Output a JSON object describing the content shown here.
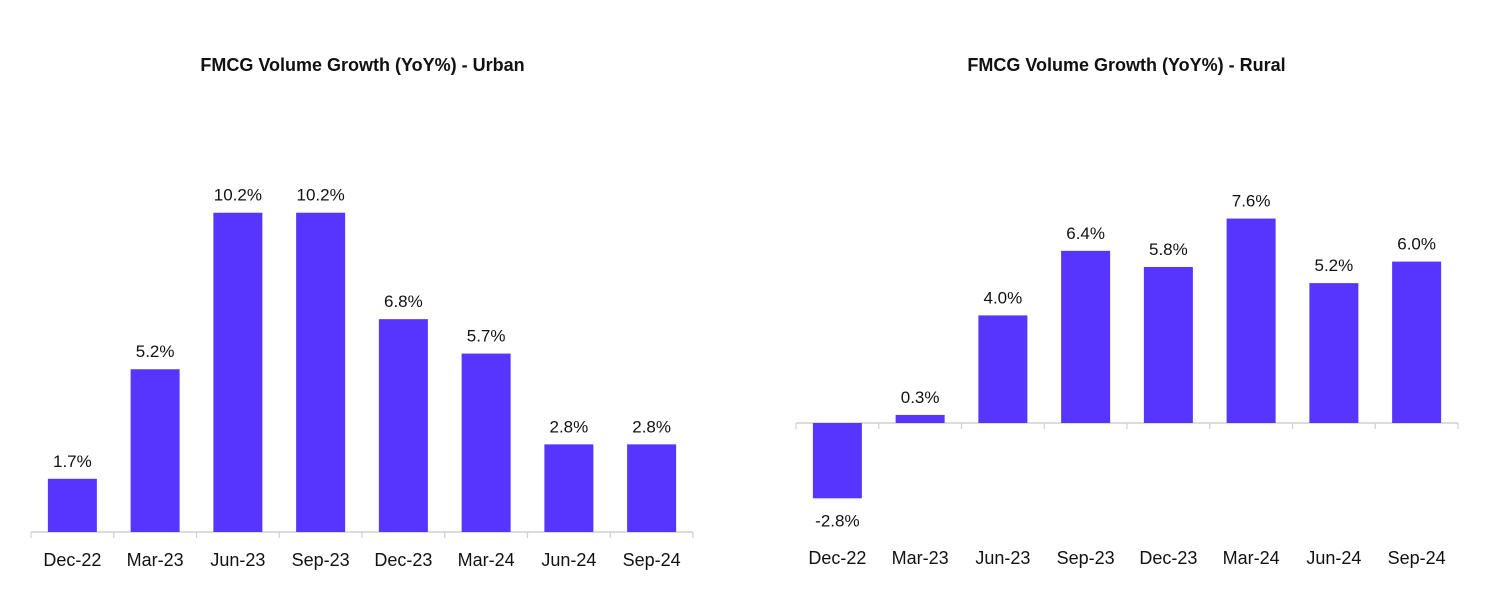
{
  "chart_data": [
    {
      "type": "bar",
      "title": "FMCG Volume Growth (YoY%)  - Urban",
      "categories": [
        "Dec-22",
        "Mar-23",
        "Jun-23",
        "Sep-23",
        "Dec-23",
        "Mar-24",
        "Jun-24",
        "Sep-24"
      ],
      "values": [
        1.7,
        5.2,
        10.2,
        10.2,
        6.8,
        5.7,
        2.8,
        2.8
      ],
      "data_labels": [
        "1.7%",
        "5.2%",
        "10.2%",
        "10.2%",
        "6.8%",
        "5.7%",
        "2.8%",
        "2.8%"
      ],
      "xlabel": "",
      "ylabel": "",
      "ylim": [
        0,
        10.2
      ],
      "bar_color": "#5835FF",
      "grid": false,
      "legend": "none"
    },
    {
      "type": "bar",
      "title": "FMCG Volume Growth (YoY%)  - Rural",
      "categories": [
        "Dec-22",
        "Mar-23",
        "Jun-23",
        "Sep-23",
        "Dec-23",
        "Mar-24",
        "Jun-24",
        "Sep-24"
      ],
      "values": [
        -2.8,
        0.3,
        4.0,
        6.4,
        5.8,
        7.6,
        5.2,
        6.0
      ],
      "data_labels": [
        "-2.8%",
        "0.3%",
        "4.0%",
        "6.4%",
        "5.8%",
        "7.6%",
        "5.2%",
        "6.0%"
      ],
      "xlabel": "",
      "ylabel": "",
      "ylim": [
        -2.8,
        7.6
      ],
      "bar_color": "#5835FF",
      "grid": false,
      "legend": "none"
    }
  ]
}
